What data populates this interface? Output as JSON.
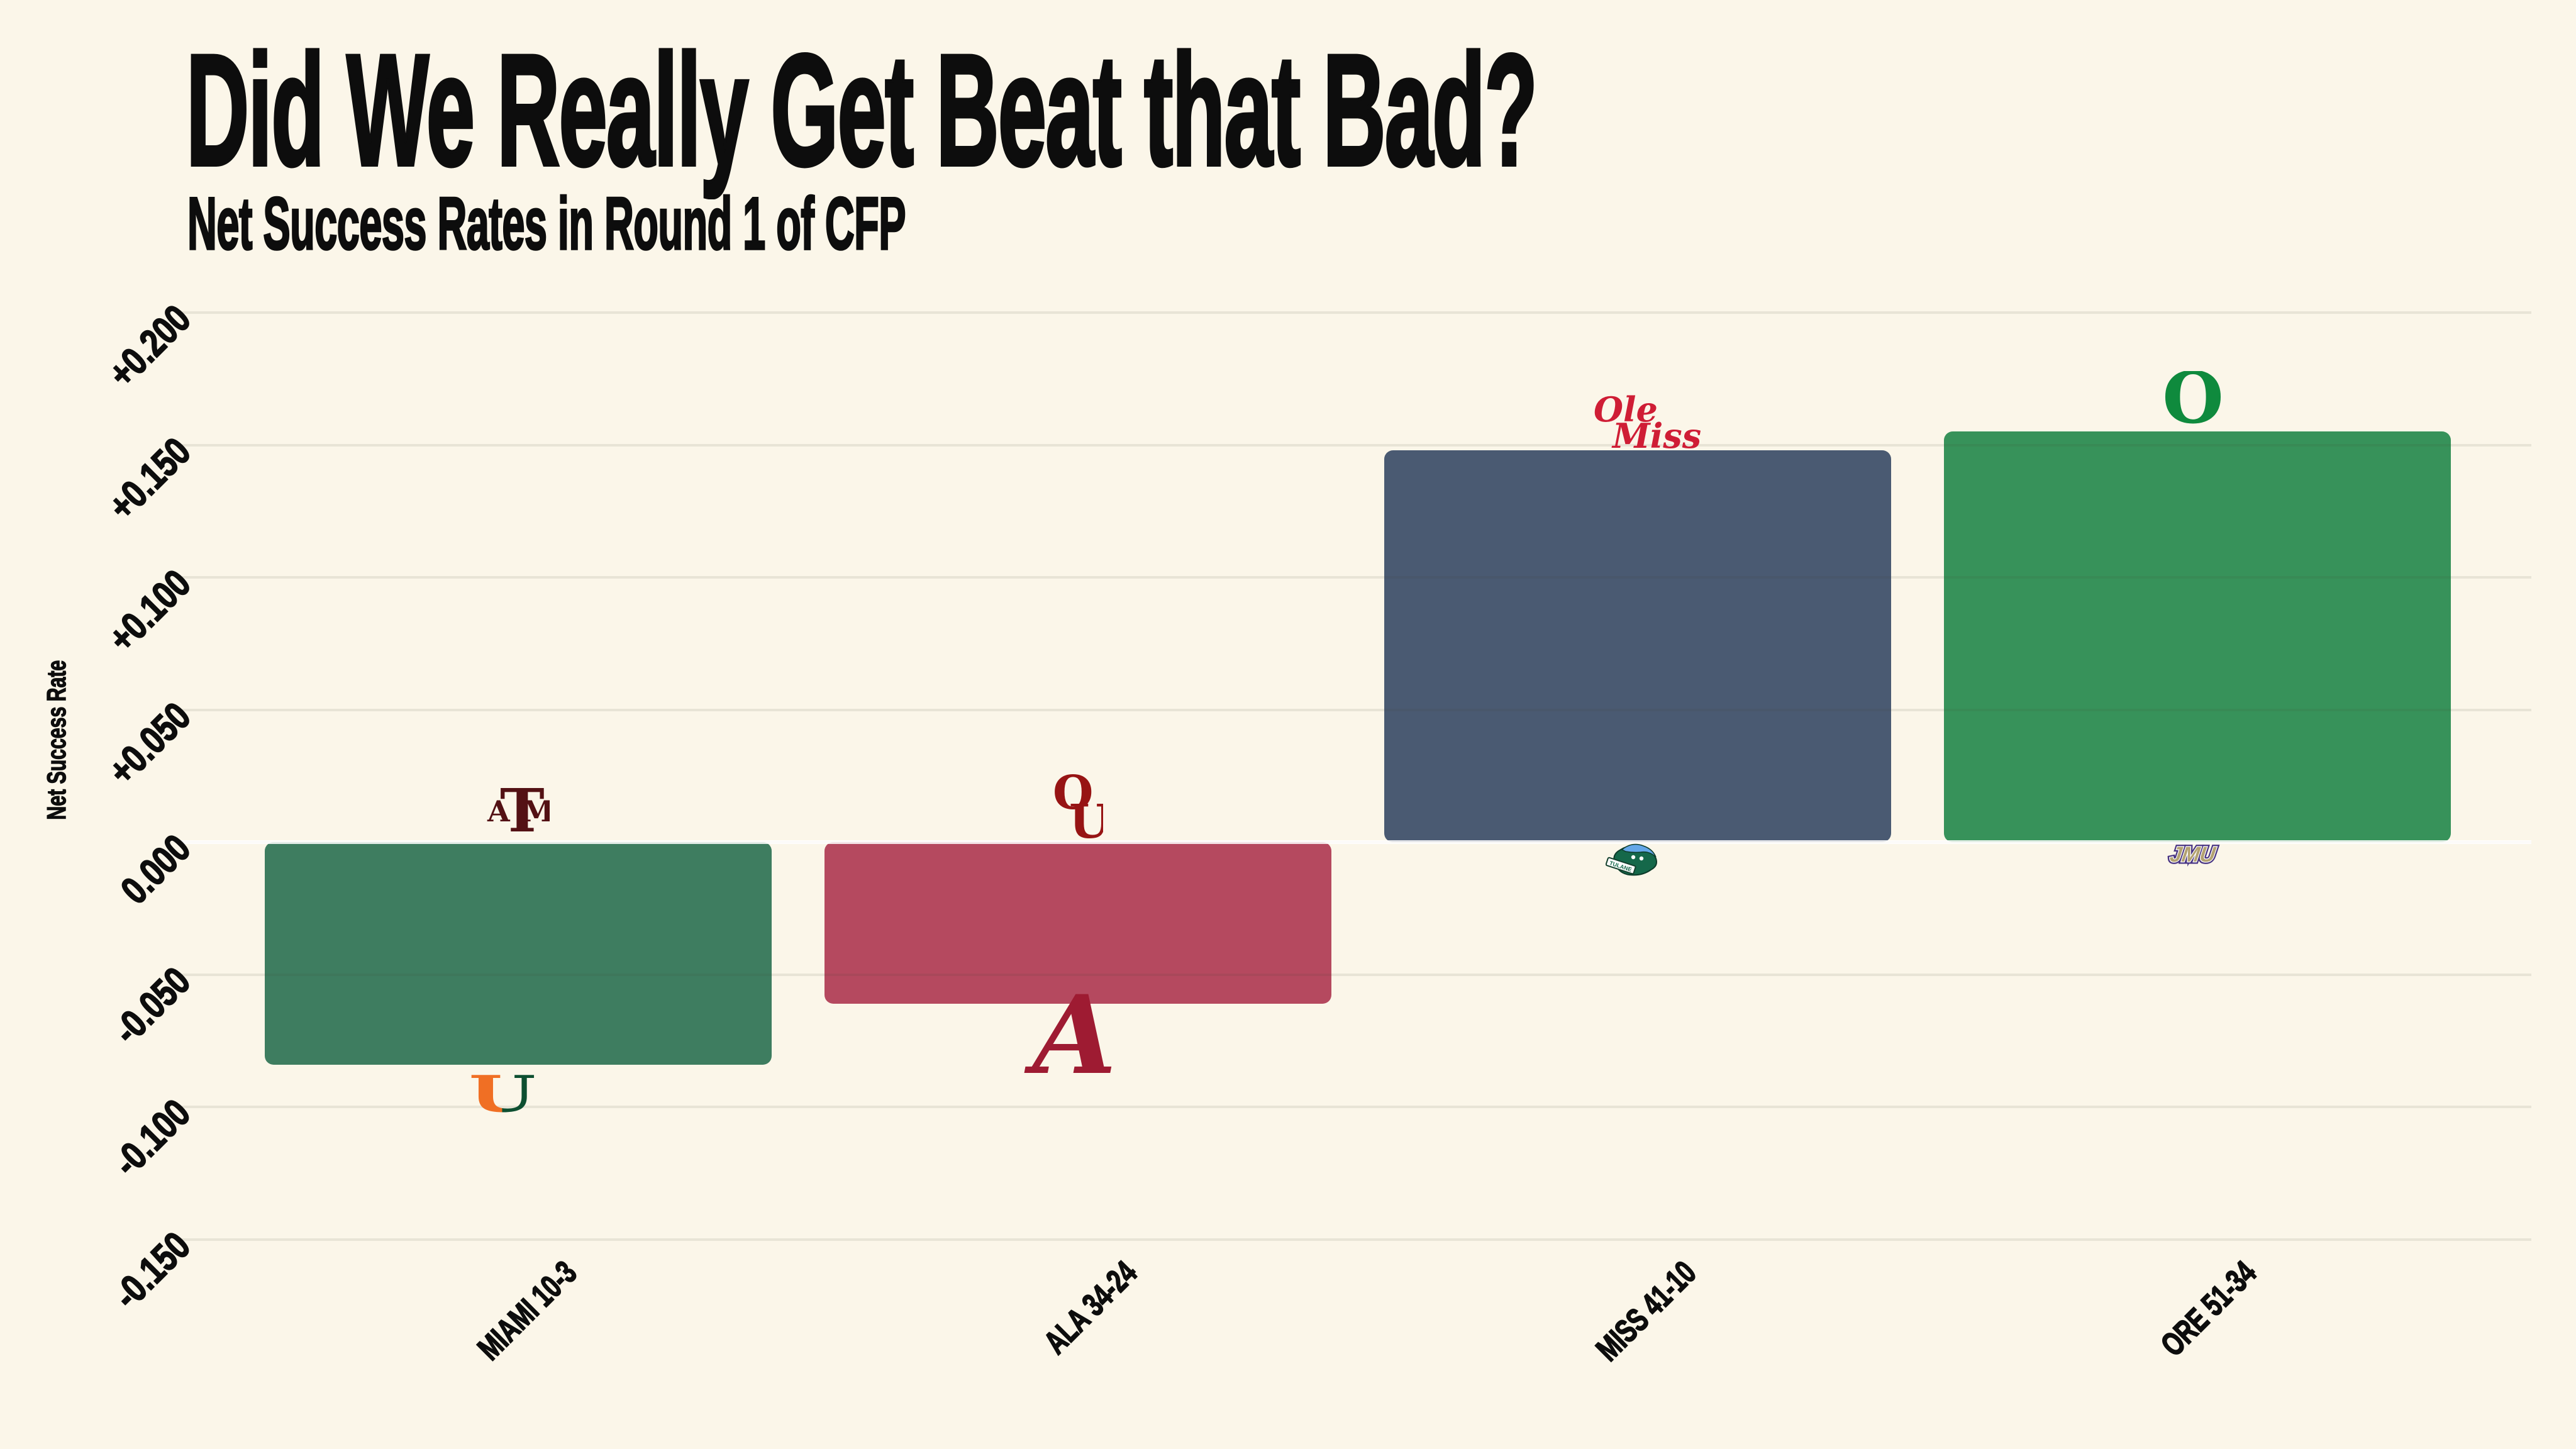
{
  "title": "Did We Really Get Beat that Bad?",
  "subtitle": "Net Success Rates in Round 1 of CFP",
  "chart_data": {
    "type": "bar",
    "title": "Did We Really Get Beat that Bad?",
    "subtitle": "Net Success Rates in Round 1 of CFP",
    "xlabel": "",
    "ylabel": "Net Success Rate",
    "categories": [
      "MIAMI 10-3",
      "ALA 34-24",
      "MISS 41-10",
      "ORE 51-34"
    ],
    "values": [
      -0.084,
      -0.061,
      0.148,
      0.155
    ],
    "bar_colors": [
      "#3E7D60",
      "#B5495F",
      "#4A5A72",
      "#37925A"
    ],
    "matchups": [
      {
        "game": "MIAMI 10-3",
        "logo_above_bar": "Texas A&M",
        "logo_below_bar": "Miami",
        "net_success_rate": -0.084
      },
      {
        "game": "ALA 34-24",
        "logo_above_bar": "Oklahoma",
        "logo_below_bar": "Alabama",
        "net_success_rate": -0.061
      },
      {
        "game": "MISS 41-10",
        "logo_above_bar": "Ole Miss",
        "logo_below_bar": "Tulane",
        "net_success_rate": 0.148
      },
      {
        "game": "ORE 51-34",
        "logo_above_bar": "Oregon",
        "logo_below_bar": "JMU",
        "net_success_rate": 0.155
      }
    ],
    "yticks": [
      {
        "label": "+0.200",
        "value": 0.2
      },
      {
        "label": "+0.150",
        "value": 0.15
      },
      {
        "label": "+0.100",
        "value": 0.1
      },
      {
        "label": "+0.050",
        "value": 0.05
      },
      {
        "label": "0.000",
        "value": 0.0
      },
      {
        "label": "-0.050",
        "value": -0.05
      },
      {
        "label": "-0.100",
        "value": -0.1
      },
      {
        "label": "-0.150",
        "value": -0.15
      }
    ],
    "ylim": [
      -0.185,
      0.225
    ],
    "grid": true,
    "legend_position": "none",
    "background_color": "#FBF6E9"
  },
  "colors": {
    "background": "#FBF6E9",
    "text": "#0D0D0D",
    "gridline": "rgba(70,64,52,0.10)",
    "zero_line": "rgba(255,255,255,0.85)"
  },
  "logos": {
    "texas_am": {
      "a": "A",
      "t": "T",
      "m": "M"
    },
    "miami": {
      "u": "U"
    },
    "oklahoma": {
      "o": "O",
      "u": "U"
    },
    "alabama": {
      "a": "A"
    },
    "ole_miss": {
      "line1": "Ole",
      "line2": "Miss"
    },
    "tulane": {
      "banner": "TULANE"
    },
    "oregon": {
      "o": "O"
    },
    "jmu": {
      "text": "JMU"
    }
  }
}
